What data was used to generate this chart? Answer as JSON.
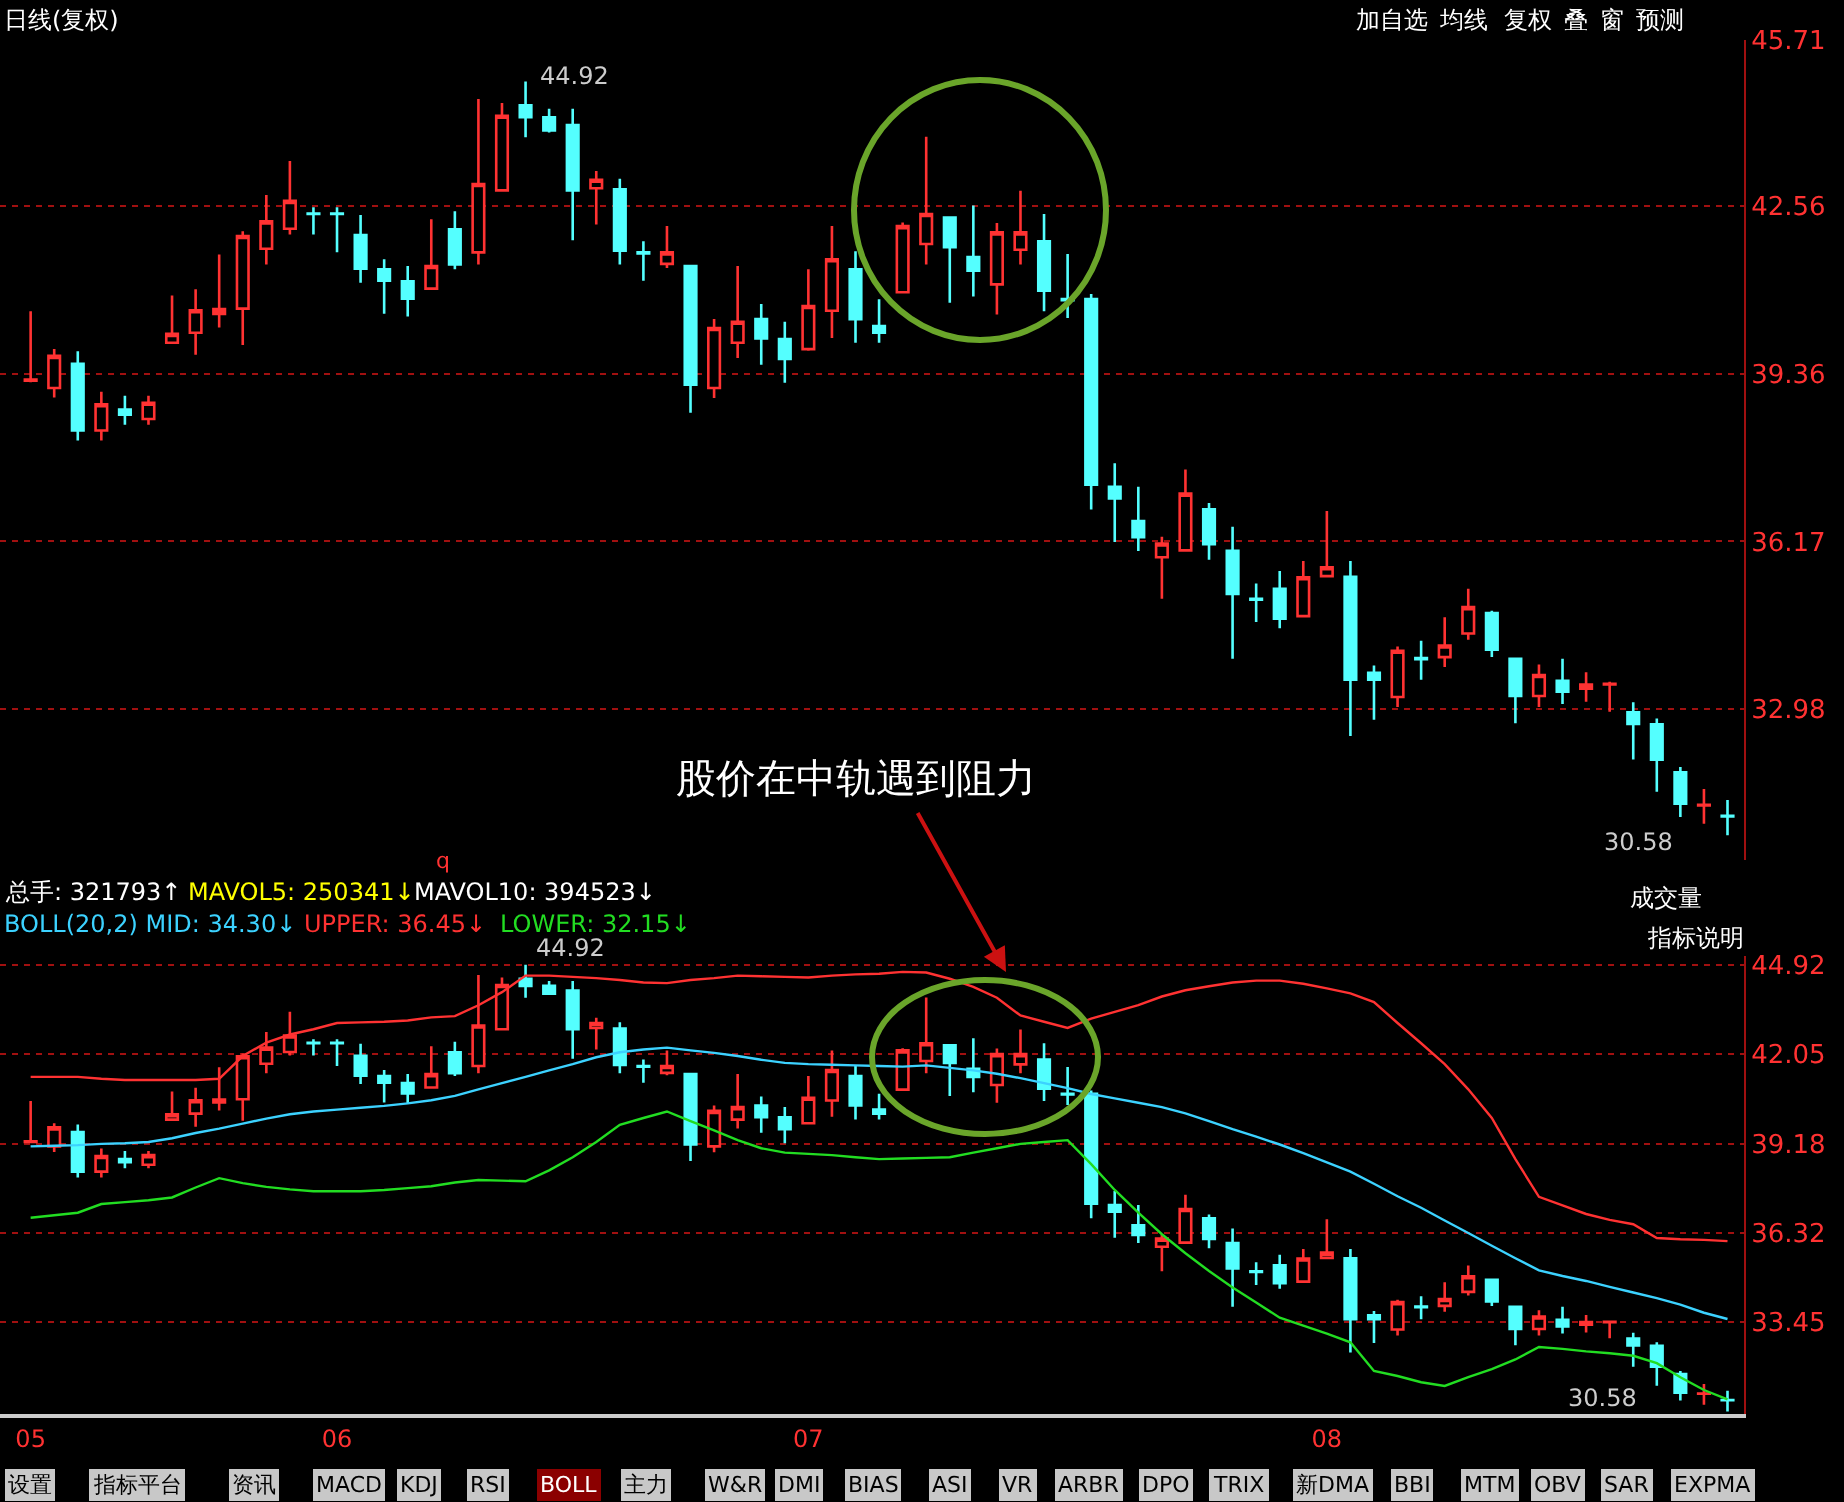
{
  "chart_data": [
    {
      "type": "candlestick",
      "title": "日线(复权)",
      "categories": [
        "05",
        null,
        null,
        null,
        null,
        null,
        null,
        null,
        null,
        null,
        null,
        null,
        null,
        "06",
        null,
        null,
        null,
        null,
        null,
        null,
        null,
        null,
        null,
        null,
        null,
        null,
        null,
        null,
        null,
        null,
        null,
        null,
        null,
        "07",
        null,
        null,
        null,
        null,
        null,
        null,
        null,
        null,
        null,
        null,
        null,
        null,
        null,
        null,
        null,
        null,
        null,
        null,
        null,
        null,
        null,
        "08",
        null,
        null,
        null,
        null,
        null,
        null,
        null,
        null,
        null,
        null,
        null,
        null,
        null,
        null,
        null,
        null,
        null
      ],
      "ohlc": [
        [
          39.23,
          40.55,
          39.2,
          39.25
        ],
        [
          39.09,
          39.83,
          38.91,
          39.7
        ],
        [
          39.55,
          39.79,
          38.09,
          38.28
        ],
        [
          38.28,
          39.02,
          38.09,
          38.78
        ],
        [
          38.68,
          38.94,
          38.39,
          38.58
        ],
        [
          38.5,
          38.94,
          38.39,
          38.81
        ],
        [
          39.95,
          40.85,
          39.95,
          40.12
        ],
        [
          40.14,
          40.97,
          39.72,
          40.57
        ],
        [
          40.5,
          41.63,
          40.24,
          40.59
        ],
        [
          40.6,
          42.07,
          39.91,
          41.98
        ],
        [
          41.74,
          42.76,
          41.44,
          42.26
        ],
        [
          42.12,
          43.41,
          42.01,
          42.65
        ],
        [
          42.41,
          42.53,
          42.01,
          42.4
        ],
        [
          42.41,
          42.53,
          41.67,
          42.4
        ],
        [
          42.0,
          42.38,
          41.09,
          41.36
        ],
        [
          41.35,
          41.54,
          40.5,
          41.13
        ],
        [
          41.12,
          41.41,
          40.45,
          40.79
        ],
        [
          40.98,
          42.3,
          40.98,
          41.41
        ],
        [
          42.11,
          42.45,
          41.35,
          41.44
        ],
        [
          41.67,
          44.59,
          41.44,
          42.97
        ],
        [
          42.85,
          44.51,
          42.85,
          44.27
        ],
        [
          44.47,
          44.92,
          43.86,
          44.24
        ],
        [
          44.24,
          44.4,
          43.95,
          43.99
        ],
        [
          44.09,
          44.4,
          41.9,
          42.85
        ],
        [
          42.89,
          43.22,
          42.2,
          43.05
        ],
        [
          42.87,
          43.07,
          41.44,
          41.7
        ],
        [
          41.67,
          41.88,
          41.13,
          41.65
        ],
        [
          41.45,
          42.17,
          41.37,
          41.67
        ],
        [
          41.41,
          41.41,
          38.62,
          39.15
        ],
        [
          39.09,
          40.4,
          38.9,
          40.23
        ],
        [
          39.95,
          41.41,
          39.66,
          40.35
        ],
        [
          40.4,
          40.69,
          39.53,
          40.03
        ],
        [
          40.02,
          40.35,
          39.19,
          39.64
        ],
        [
          39.83,
          41.35,
          39.8,
          40.65
        ],
        [
          40.56,
          42.17,
          40.04,
          41.54
        ],
        [
          41.35,
          41.69,
          39.95,
          40.4
        ],
        [
          40.27,
          40.78,
          39.95,
          40.14
        ],
        [
          40.91,
          42.24,
          40.91,
          42.17
        ],
        [
          41.83,
          43.87,
          41.44,
          42.4
        ],
        [
          42.33,
          42.33,
          40.71,
          41.77
        ],
        [
          41.58,
          42.56,
          40.83,
          41.32
        ],
        [
          41.06,
          42.23,
          40.49,
          42.05
        ],
        [
          41.72,
          42.84,
          41.44,
          42.05
        ],
        [
          41.88,
          42.4,
          40.55,
          40.94
        ],
        [
          40.78,
          41.64,
          40.42,
          40.76
        ],
        [
          40.78,
          40.88,
          36.78,
          37.25
        ],
        [
          37.21,
          37.66,
          36.16,
          36.99
        ],
        [
          36.56,
          37.21,
          35.99,
          36.25
        ],
        [
          35.87,
          36.26,
          35.08,
          36.13
        ],
        [
          36.0,
          37.54,
          36.0,
          37.08
        ],
        [
          36.78,
          36.9,
          35.82,
          36.12
        ],
        [
          35.99,
          36.45,
          33.94,
          35.17
        ],
        [
          35.08,
          35.37,
          34.64,
          35.06
        ],
        [
          35.27,
          35.61,
          34.52,
          34.7
        ],
        [
          34.75,
          35.8,
          34.75,
          35.49
        ],
        [
          35.51,
          36.75,
          35.51,
          35.68
        ],
        [
          35.5,
          35.8,
          32.47,
          33.54
        ],
        [
          33.67,
          33.81,
          32.78,
          33.54
        ],
        [
          33.21,
          34.17,
          33.02,
          34.09
        ],
        [
          33.95,
          34.28,
          33.54,
          33.93
        ],
        [
          33.97,
          34.73,
          33.78,
          34.19
        ],
        [
          34.42,
          35.27,
          34.3,
          34.92
        ],
        [
          34.81,
          34.85,
          33.97,
          34.11
        ],
        [
          33.94,
          33.94,
          32.71,
          33.23
        ],
        [
          33.23,
          33.83,
          33.02,
          33.63
        ],
        [
          33.52,
          33.94,
          33.08,
          33.31
        ],
        [
          33.37,
          33.68,
          33.12,
          33.45
        ],
        [
          33.45,
          33.5,
          32.93,
          33.46
        ],
        [
          32.92,
          33.11,
          32.02,
          32.7
        ],
        [
          32.69,
          32.8,
          31.41,
          32.02
        ],
        [
          31.78,
          31.88,
          30.93,
          31.18
        ],
        [
          31.15,
          31.46,
          30.8,
          31.16
        ],
        [
          30.95,
          31.25,
          30.58,
          30.94
        ]
      ],
      "colors": [
        "#ff3232",
        "#ff3232",
        "#54ffff",
        "#ff3232",
        "#54ffff",
        "#ff3232",
        "#ff3232",
        "#ff3232",
        "#ff3232",
        "#ff3232",
        "#ff3232",
        "#ff3232",
        "#54ffff",
        "#54ffff",
        "#54ffff",
        "#54ffff",
        "#54ffff",
        "#ff3232",
        "#54ffff",
        "#ff3232",
        "#ff3232",
        "#54ffff",
        "#54ffff",
        "#54ffff",
        "#ff3232",
        "#54ffff",
        "#54ffff",
        "#ff3232",
        "#54ffff",
        "#ff3232",
        "#ff3232",
        "#54ffff",
        "#54ffff",
        "#ff3232",
        "#ff3232",
        "#54ffff",
        "#54ffff",
        "#ff3232",
        "#ff3232",
        "#54ffff",
        "#54ffff",
        "#ff3232",
        "#ff3232",
        "#54ffff",
        "#54ffff",
        "#54ffff",
        "#54ffff",
        "#54ffff",
        "#ff3232",
        "#ff3232",
        "#54ffff",
        "#54ffff",
        "#54ffff",
        "#54ffff",
        "#ff3232",
        "#ff3232",
        "#54ffff",
        "#54ffff",
        "#ff3232",
        "#54ffff",
        "#ff3232",
        "#ff3232",
        "#54ffff",
        "#54ffff",
        "#ff3232",
        "#54ffff",
        "#ff3232",
        "#ff3232",
        "#54ffff",
        "#54ffff",
        "#54ffff",
        "#ff3232",
        "#54ffff"
      ],
      "ylim": [
        30.11,
        45.71
      ],
      "yticks": [
        32.98,
        36.17,
        39.36,
        42.56,
        45.71
      ],
      "grid": "y",
      "tick_labels": "y",
      "annotations": [
        "加自选",
        "均线",
        "复权",
        "叠",
        "窗",
        "预测",
        "股价在中轨遇到阻力",
        "44.92",
        "30.58"
      ]
    },
    {
      "type": "candlestick",
      "categories": [
        "05",
        null,
        null,
        null,
        null,
        null,
        null,
        null,
        null,
        null,
        null,
        null,
        null,
        "06",
        null,
        null,
        null,
        null,
        null,
        null,
        null,
        null,
        null,
        null,
        null,
        null,
        null,
        null,
        null,
        null,
        null,
        null,
        null,
        "07",
        null,
        null,
        null,
        null,
        null,
        null,
        null,
        null,
        null,
        null,
        null,
        null,
        null,
        null,
        null,
        null,
        null,
        null,
        null,
        null,
        null,
        "08",
        null,
        null,
        null,
        null,
        null,
        null,
        null,
        null,
        null,
        null,
        null,
        null,
        null,
        null,
        null,
        null,
        null
      ],
      "ohlc": [
        [
          39.23,
          40.55,
          39.2,
          39.25
        ],
        [
          39.09,
          39.83,
          38.91,
          39.7
        ],
        [
          39.55,
          39.79,
          38.09,
          38.28
        ],
        [
          38.28,
          39.02,
          38.09,
          38.78
        ],
        [
          38.68,
          38.94,
          38.39,
          38.58
        ],
        [
          38.5,
          38.94,
          38.39,
          38.81
        ],
        [
          39.95,
          40.85,
          39.95,
          40.12
        ],
        [
          40.14,
          40.97,
          39.72,
          40.57
        ],
        [
          40.5,
          41.63,
          40.24,
          40.59
        ],
        [
          40.6,
          42.07,
          39.91,
          41.98
        ],
        [
          41.74,
          42.76,
          41.44,
          42.26
        ],
        [
          42.12,
          43.41,
          42.01,
          42.65
        ],
        [
          42.41,
          42.53,
          42.01,
          42.4
        ],
        [
          42.41,
          42.53,
          41.67,
          42.4
        ],
        [
          42.0,
          42.38,
          41.09,
          41.36
        ],
        [
          41.35,
          41.54,
          40.5,
          41.13
        ],
        [
          41.12,
          41.41,
          40.45,
          40.79
        ],
        [
          40.98,
          42.3,
          40.98,
          41.41
        ],
        [
          42.11,
          42.45,
          41.35,
          41.44
        ],
        [
          41.67,
          44.59,
          41.44,
          42.97
        ],
        [
          42.85,
          44.51,
          42.85,
          44.27
        ],
        [
          44.47,
          44.92,
          43.86,
          44.24
        ],
        [
          44.24,
          44.4,
          43.95,
          43.99
        ],
        [
          44.09,
          44.4,
          41.9,
          42.85
        ],
        [
          42.89,
          43.22,
          42.2,
          43.05
        ],
        [
          42.87,
          43.07,
          41.44,
          41.7
        ],
        [
          41.67,
          41.88,
          41.13,
          41.65
        ],
        [
          41.45,
          42.17,
          41.37,
          41.67
        ],
        [
          41.41,
          41.41,
          38.62,
          39.15
        ],
        [
          39.09,
          40.4,
          38.9,
          40.23
        ],
        [
          39.95,
          41.41,
          39.66,
          40.35
        ],
        [
          40.4,
          40.69,
          39.53,
          40.03
        ],
        [
          40.02,
          40.35,
          39.19,
          39.64
        ],
        [
          39.83,
          41.35,
          39.8,
          40.65
        ],
        [
          40.56,
          42.17,
          40.04,
          41.54
        ],
        [
          41.35,
          41.69,
          39.95,
          40.4
        ],
        [
          40.27,
          40.78,
          39.95,
          40.14
        ],
        [
          40.91,
          42.24,
          40.91,
          42.17
        ],
        [
          41.83,
          43.87,
          41.44,
          42.4
        ],
        [
          42.33,
          42.33,
          40.71,
          41.77
        ],
        [
          41.58,
          42.56,
          40.83,
          41.32
        ],
        [
          41.06,
          42.23,
          40.49,
          42.05
        ],
        [
          41.72,
          42.84,
          41.44,
          42.05
        ],
        [
          41.88,
          42.4,
          40.55,
          40.94
        ],
        [
          40.78,
          41.64,
          40.42,
          40.76
        ],
        [
          40.78,
          40.88,
          36.78,
          37.25
        ],
        [
          37.21,
          37.66,
          36.16,
          36.99
        ],
        [
          36.56,
          37.21,
          35.99,
          36.25
        ],
        [
          35.87,
          36.26,
          35.08,
          36.13
        ],
        [
          36.0,
          37.54,
          36.0,
          37.08
        ],
        [
          36.78,
          36.9,
          35.82,
          36.12
        ],
        [
          35.99,
          36.45,
          33.94,
          35.17
        ],
        [
          35.08,
          35.37,
          34.64,
          35.06
        ],
        [
          35.27,
          35.61,
          34.52,
          34.7
        ],
        [
          34.75,
          35.8,
          34.75,
          35.49
        ],
        [
          35.51,
          36.75,
          35.51,
          35.68
        ],
        [
          35.5,
          35.8,
          32.47,
          33.54
        ],
        [
          33.67,
          33.81,
          32.78,
          33.54
        ],
        [
          33.21,
          34.17,
          33.02,
          34.09
        ],
        [
          33.95,
          34.28,
          33.54,
          33.93
        ],
        [
          33.97,
          34.73,
          33.78,
          34.19
        ],
        [
          34.42,
          35.27,
          34.3,
          34.92
        ],
        [
          34.81,
          34.85,
          33.97,
          34.11
        ],
        [
          33.94,
          33.94,
          32.71,
          33.23
        ],
        [
          33.23,
          33.83,
          33.02,
          33.63
        ],
        [
          33.52,
          33.94,
          33.08,
          33.31
        ],
        [
          33.37,
          33.68,
          33.12,
          33.45
        ],
        [
          33.45,
          33.5,
          32.93,
          33.46
        ],
        [
          32.92,
          33.11,
          32.02,
          32.7
        ],
        [
          32.69,
          32.8,
          31.41,
          32.02
        ],
        [
          31.78,
          31.88,
          30.93,
          31.18
        ],
        [
          31.15,
          31.46,
          30.8,
          31.16
        ],
        [
          30.95,
          31.25,
          30.58,
          30.94
        ]
      ],
      "colors": [
        "#ff3232",
        "#ff3232",
        "#54ffff",
        "#ff3232",
        "#54ffff",
        "#ff3232",
        "#ff3232",
        "#ff3232",
        "#ff3232",
        "#ff3232",
        "#ff3232",
        "#ff3232",
        "#54ffff",
        "#54ffff",
        "#54ffff",
        "#54ffff",
        "#54ffff",
        "#ff3232",
        "#54ffff",
        "#ff3232",
        "#ff3232",
        "#54ffff",
        "#54ffff",
        "#54ffff",
        "#ff3232",
        "#54ffff",
        "#54ffff",
        "#ff3232",
        "#54ffff",
        "#ff3232",
        "#ff3232",
        "#54ffff",
        "#54ffff",
        "#ff3232",
        "#ff3232",
        "#54ffff",
        "#54ffff",
        "#ff3232",
        "#ff3232",
        "#54ffff",
        "#54ffff",
        "#ff3232",
        "#ff3232",
        "#54ffff",
        "#54ffff",
        "#54ffff",
        "#54ffff",
        "#54ffff",
        "#ff3232",
        "#ff3232",
        "#54ffff",
        "#54ffff",
        "#54ffff",
        "#54ffff",
        "#ff3232",
        "#ff3232",
        "#54ffff",
        "#54ffff",
        "#ff3232",
        "#54ffff",
        "#ff3232",
        "#ff3232",
        "#54ffff",
        "#54ffff",
        "#ff3232",
        "#54ffff",
        "#ff3232",
        "#ff3232",
        "#54ffff",
        "#54ffff",
        "#54ffff",
        "#ff3232",
        "#54ffff"
      ],
      "series": [
        {
          "type": "line",
          "color": "#ff3232",
          "values": [
            41.32,
            41.32,
            41.32,
            41.26,
            41.22,
            41.22,
            41.22,
            41.22,
            41.26,
            41.99,
            42.42,
            42.68,
            42.85,
            43.05,
            43.07,
            43.09,
            43.13,
            43.23,
            43.27,
            43.62,
            44.04,
            44.57,
            44.57,
            44.53,
            44.49,
            44.43,
            44.35,
            44.33,
            44.43,
            44.49,
            44.57,
            44.55,
            44.53,
            44.51,
            44.57,
            44.61,
            44.63,
            44.69,
            44.67,
            44.47,
            44.21,
            43.86,
            43.29,
            43.09,
            42.89,
            43.19,
            43.41,
            43.62,
            43.9,
            44.1,
            44.23,
            44.35,
            44.41,
            44.41,
            44.31,
            44.16,
            44.0,
            43.72,
            43.05,
            42.4,
            41.73,
            40.92,
            40.0,
            38.68,
            37.47,
            37.2,
            36.92,
            36.73,
            36.59,
            36.15,
            36.11,
            36.09,
            36.05
          ]
        },
        {
          "type": "line",
          "color": "#3cd2ff",
          "values": [
            39.09,
            39.11,
            39.13,
            39.17,
            39.19,
            39.23,
            39.35,
            39.52,
            39.66,
            39.82,
            39.98,
            40.12,
            40.21,
            40.27,
            40.33,
            40.39,
            40.47,
            40.57,
            40.71,
            40.92,
            41.12,
            41.32,
            41.53,
            41.73,
            41.95,
            42.11,
            42.2,
            42.26,
            42.17,
            42.09,
            41.99,
            41.87,
            41.77,
            41.73,
            41.71,
            41.69,
            41.67,
            41.65,
            41.69,
            41.61,
            41.53,
            41.42,
            41.28,
            41.12,
            40.96,
            40.77,
            40.63,
            40.49,
            40.35,
            40.15,
            39.9,
            39.64,
            39.4,
            39.15,
            38.87,
            38.58,
            38.28,
            37.89,
            37.49,
            37.12,
            36.71,
            36.31,
            35.9,
            35.5,
            35.11,
            34.93,
            34.77,
            34.58,
            34.4,
            34.22,
            34.01,
            33.75,
            33.55
          ]
        },
        {
          "type": "line",
          "color": "#22dd22",
          "values": [
            36.8,
            36.88,
            36.96,
            37.24,
            37.3,
            37.36,
            37.45,
            37.77,
            38.07,
            37.91,
            37.79,
            37.71,
            37.65,
            37.65,
            37.65,
            37.69,
            37.75,
            37.81,
            37.93,
            38.01,
            37.99,
            37.97,
            38.32,
            38.74,
            39.23,
            39.78,
            40.0,
            40.21,
            39.9,
            39.6,
            39.29,
            39.03,
            38.89,
            38.85,
            38.81,
            38.74,
            38.68,
            38.7,
            38.72,
            38.74,
            38.89,
            39.03,
            39.17,
            39.23,
            39.29,
            38.52,
            37.69,
            36.96,
            36.27,
            35.66,
            35.09,
            34.56,
            34.08,
            33.59,
            33.34,
            33.08,
            32.8,
            31.88,
            31.72,
            31.52,
            31.4,
            31.68,
            31.94,
            32.25,
            32.65,
            32.59,
            32.51,
            32.45,
            32.37,
            32.13,
            31.68,
            31.27,
            30.97
          ]
        }
      ],
      "ylim": [
        30.5,
        45.2
      ],
      "yticks": [
        33.45,
        36.32,
        39.18,
        42.05,
        44.92
      ],
      "grid": "y",
      "annotations": [
        "q",
        "总手: 321793↑",
        "MAVOL5: 250341↓",
        "MAVOL10: 394523↓",
        "BOLL(20,2) MID: 34.30↓",
        "UPPER: 36.45↓",
        "LOWER: 32.15↓",
        "成交量",
        "指标说明",
        "44.92",
        "30.58",
        "设置",
        "指标平台",
        "资讯",
        "MACD",
        "KDJ",
        "RSI",
        "BOLL",
        "主力",
        "W&R",
        "DMI",
        "BIAS",
        "ASI",
        "VR",
        "ARBR",
        "DPO",
        "TRIX",
        "新DMA",
        "BBI",
        "MTM",
        "OBV",
        "SAR",
        "EXPMA"
      ]
    }
  ]
}
